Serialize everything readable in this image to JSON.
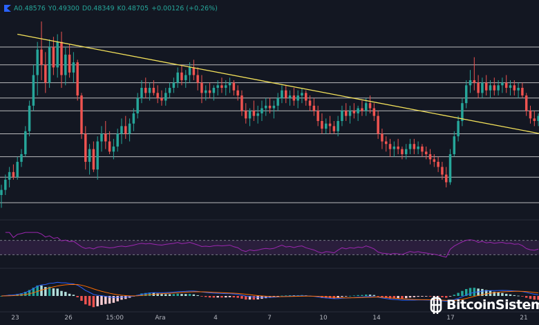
{
  "header": {
    "open_label": "A0.48576",
    "high_label": "Y0.49300",
    "low_label": "D0.48349",
    "close_label": "K0.48705",
    "change_label": "+0.00126 (+0.26%)"
  },
  "watermark": {
    "text": "BitcoinSistemi"
  },
  "colors": {
    "background": "#131722",
    "up": "#26a69a",
    "down": "#ef5350",
    "levels": "#d9d9d9",
    "trendline": "#f5e35b",
    "rsi": "#9c27b0",
    "rsi_band": "#2a1e3c",
    "macd": "#2962ff",
    "signal": "#ff6d00"
  },
  "chart_data": {
    "type": "candlestick",
    "x_tick_labels": [
      "23",
      "26",
      "15:00",
      "Ara",
      "4",
      "7",
      "10",
      "14",
      "17",
      "21"
    ],
    "y_range": [
      0.448,
      0.532
    ],
    "candles_ohlc": [
      [
        0.461,
        0.465,
        0.456,
        0.463
      ],
      [
        0.463,
        0.469,
        0.461,
        0.467
      ],
      [
        0.467,
        0.472,
        0.464,
        0.47
      ],
      [
        0.47,
        0.473,
        0.467,
        0.468
      ],
      [
        0.468,
        0.476,
        0.467,
        0.474
      ],
      [
        0.474,
        0.479,
        0.472,
        0.477
      ],
      [
        0.477,
        0.488,
        0.476,
        0.486
      ],
      [
        0.486,
        0.498,
        0.484,
        0.496
      ],
      [
        0.496,
        0.512,
        0.494,
        0.508
      ],
      [
        0.508,
        0.521,
        0.5,
        0.518
      ],
      [
        0.518,
        0.529,
        0.506,
        0.512
      ],
      [
        0.512,
        0.517,
        0.501,
        0.505
      ],
      [
        0.505,
        0.522,
        0.503,
        0.519
      ],
      [
        0.519,
        0.523,
        0.508,
        0.511
      ],
      [
        0.511,
        0.524,
        0.507,
        0.521
      ],
      [
        0.521,
        0.525,
        0.503,
        0.508
      ],
      [
        0.508,
        0.519,
        0.504,
        0.516
      ],
      [
        0.516,
        0.52,
        0.507,
        0.509
      ],
      [
        0.509,
        0.517,
        0.505,
        0.513
      ],
      [
        0.513,
        0.514,
        0.498,
        0.5
      ],
      [
        0.5,
        0.501,
        0.483,
        0.485
      ],
      [
        0.485,
        0.488,
        0.471,
        0.474
      ],
      [
        0.474,
        0.481,
        0.469,
        0.479
      ],
      [
        0.479,
        0.482,
        0.47,
        0.471
      ],
      [
        0.471,
        0.484,
        0.467,
        0.482
      ],
      [
        0.482,
        0.488,
        0.478,
        0.485
      ],
      [
        0.485,
        0.49,
        0.479,
        0.482
      ],
      [
        0.482,
        0.486,
        0.477,
        0.478
      ],
      [
        0.478,
        0.483,
        0.475,
        0.48
      ],
      [
        0.48,
        0.487,
        0.478,
        0.485
      ],
      [
        0.485,
        0.491,
        0.481,
        0.488
      ],
      [
        0.488,
        0.492,
        0.483,
        0.485
      ],
      [
        0.485,
        0.491,
        0.482,
        0.489
      ],
      [
        0.489,
        0.495,
        0.486,
        0.493
      ],
      [
        0.493,
        0.501,
        0.491,
        0.499
      ],
      [
        0.499,
        0.506,
        0.497,
        0.503
      ],
      [
        0.503,
        0.507,
        0.499,
        0.501
      ],
      [
        0.501,
        0.505,
        0.498,
        0.503
      ],
      [
        0.503,
        0.506,
        0.5,
        0.501
      ],
      [
        0.501,
        0.504,
        0.497,
        0.499
      ],
      [
        0.499,
        0.502,
        0.496,
        0.498
      ],
      [
        0.498,
        0.503,
        0.496,
        0.501
      ],
      [
        0.501,
        0.505,
        0.499,
        0.503
      ],
      [
        0.503,
        0.507,
        0.501,
        0.505
      ],
      [
        0.505,
        0.511,
        0.503,
        0.509
      ],
      [
        0.509,
        0.512,
        0.504,
        0.506
      ],
      [
        0.506,
        0.51,
        0.503,
        0.508
      ],
      [
        0.508,
        0.513,
        0.505,
        0.511
      ],
      [
        0.511,
        0.514,
        0.506,
        0.508
      ],
      [
        0.508,
        0.511,
        0.502,
        0.505
      ],
      [
        0.505,
        0.508,
        0.497,
        0.501
      ],
      [
        0.501,
        0.504,
        0.498,
        0.502
      ],
      [
        0.502,
        0.505,
        0.499,
        0.501
      ],
      [
        0.501,
        0.504,
        0.498,
        0.503
      ],
      [
        0.503,
        0.506,
        0.5,
        0.504
      ],
      [
        0.504,
        0.507,
        0.501,
        0.503
      ],
      [
        0.503,
        0.506,
        0.5,
        0.504
      ],
      [
        0.504,
        0.507,
        0.501,
        0.505
      ],
      [
        0.505,
        0.506,
        0.5,
        0.502
      ],
      [
        0.502,
        0.504,
        0.498,
        0.5
      ],
      [
        0.5,
        0.502,
        0.492,
        0.494
      ],
      [
        0.494,
        0.497,
        0.489,
        0.491
      ],
      [
        0.491,
        0.495,
        0.488,
        0.494
      ],
      [
        0.494,
        0.498,
        0.49,
        0.492
      ],
      [
        0.492,
        0.496,
        0.489,
        0.493
      ],
      [
        0.493,
        0.498,
        0.49,
        0.495
      ],
      [
        0.495,
        0.499,
        0.492,
        0.496
      ],
      [
        0.496,
        0.499,
        0.493,
        0.495
      ],
      [
        0.495,
        0.498,
        0.491,
        0.496
      ],
      [
        0.496,
        0.501,
        0.494,
        0.499
      ],
      [
        0.499,
        0.504,
        0.497,
        0.502
      ],
      [
        0.502,
        0.504,
        0.497,
        0.499
      ],
      [
        0.499,
        0.502,
        0.496,
        0.5
      ],
      [
        0.5,
        0.503,
        0.496,
        0.498
      ],
      [
        0.498,
        0.502,
        0.495,
        0.5
      ],
      [
        0.5,
        0.503,
        0.497,
        0.501
      ],
      [
        0.501,
        0.502,
        0.496,
        0.498
      ],
      [
        0.498,
        0.5,
        0.494,
        0.496
      ],
      [
        0.496,
        0.499,
        0.492,
        0.494
      ],
      [
        0.494,
        0.496,
        0.488,
        0.49
      ],
      [
        0.49,
        0.493,
        0.485,
        0.487
      ],
      [
        0.487,
        0.491,
        0.485,
        0.489
      ],
      [
        0.489,
        0.492,
        0.485,
        0.488
      ],
      [
        0.488,
        0.49,
        0.485,
        0.486
      ],
      [
        0.486,
        0.492,
        0.484,
        0.49
      ],
      [
        0.49,
        0.496,
        0.488,
        0.494
      ],
      [
        0.494,
        0.497,
        0.49,
        0.492
      ],
      [
        0.492,
        0.496,
        0.489,
        0.494
      ],
      [
        0.494,
        0.497,
        0.491,
        0.493
      ],
      [
        0.493,
        0.496,
        0.49,
        0.495
      ],
      [
        0.495,
        0.498,
        0.492,
        0.494
      ],
      [
        0.494,
        0.499,
        0.492,
        0.497
      ],
      [
        0.497,
        0.5,
        0.493,
        0.495
      ],
      [
        0.495,
        0.497,
        0.49,
        0.492
      ],
      [
        0.492,
        0.494,
        0.483,
        0.485
      ],
      [
        0.485,
        0.487,
        0.479,
        0.482
      ],
      [
        0.482,
        0.484,
        0.478,
        0.481
      ],
      [
        0.481,
        0.483,
        0.476,
        0.479
      ],
      [
        0.479,
        0.482,
        0.476,
        0.48
      ],
      [
        0.48,
        0.483,
        0.477,
        0.479
      ],
      [
        0.479,
        0.48,
        0.475,
        0.477
      ],
      [
        0.477,
        0.481,
        0.475,
        0.479
      ],
      [
        0.479,
        0.483,
        0.477,
        0.481
      ],
      [
        0.481,
        0.483,
        0.477,
        0.479
      ],
      [
        0.479,
        0.482,
        0.477,
        0.48
      ],
      [
        0.48,
        0.481,
        0.476,
        0.478
      ],
      [
        0.478,
        0.48,
        0.475,
        0.477
      ],
      [
        0.477,
        0.479,
        0.473,
        0.475
      ],
      [
        0.475,
        0.477,
        0.472,
        0.474
      ],
      [
        0.474,
        0.476,
        0.47,
        0.472
      ],
      [
        0.472,
        0.474,
        0.467,
        0.469
      ],
      [
        0.469,
        0.472,
        0.464,
        0.466
      ],
      [
        0.466,
        0.479,
        0.465,
        0.477
      ],
      [
        0.477,
        0.486,
        0.476,
        0.484
      ],
      [
        0.484,
        0.492,
        0.482,
        0.49
      ],
      [
        0.49,
        0.499,
        0.488,
        0.497
      ],
      [
        0.497,
        0.506,
        0.495,
        0.504
      ],
      [
        0.504,
        0.51,
        0.501,
        0.506
      ],
      [
        0.506,
        0.515,
        0.502,
        0.505
      ],
      [
        0.505,
        0.508,
        0.499,
        0.501
      ],
      [
        0.501,
        0.507,
        0.499,
        0.505
      ],
      [
        0.505,
        0.508,
        0.5,
        0.502
      ],
      [
        0.502,
        0.506,
        0.499,
        0.504
      ],
      [
        0.504,
        0.507,
        0.5,
        0.502
      ],
      [
        0.502,
        0.506,
        0.5,
        0.504
      ],
      [
        0.504,
        0.507,
        0.501,
        0.505
      ],
      [
        0.505,
        0.508,
        0.501,
        0.503
      ],
      [
        0.503,
        0.506,
        0.5,
        0.504
      ],
      [
        0.504,
        0.506,
        0.5,
        0.502
      ],
      [
        0.502,
        0.505,
        0.499,
        0.503
      ],
      [
        0.503,
        0.505,
        0.499,
        0.5
      ],
      [
        0.5,
        0.501,
        0.492,
        0.494
      ],
      [
        0.494,
        0.496,
        0.489,
        0.491
      ],
      [
        0.491,
        0.494,
        0.488,
        0.49
      ],
      [
        0.49,
        0.493,
        0.488,
        0.492
      ]
    ],
    "horizontal_levels": [
      0.519,
      0.512,
      0.505,
      0.499,
      0.494,
      0.485,
      0.476,
      0.468,
      0.458
    ],
    "trendline": {
      "start": [
        4,
        0.524
      ],
      "end": [
        158,
        0.478
      ]
    },
    "rsi": {
      "upper_band": 70,
      "lower_band": 30
    },
    "macd": {
      "series": [
        "macd",
        "signal",
        "histogram"
      ]
    }
  }
}
